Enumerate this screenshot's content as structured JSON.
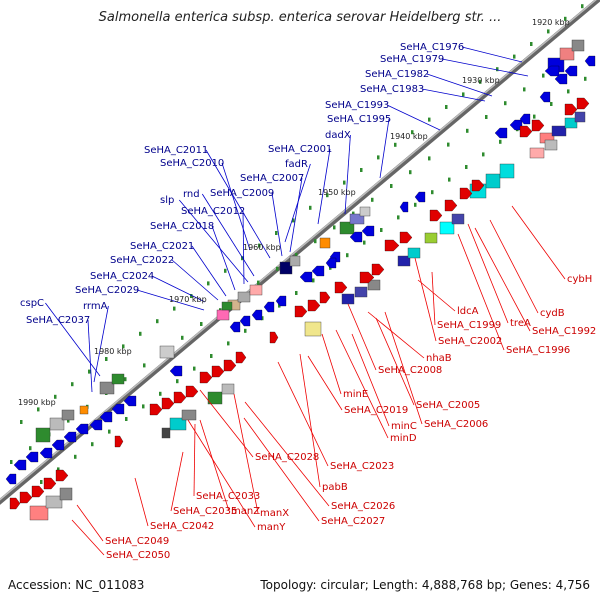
{
  "title": "Salmonella enterica subsp. enterica serovar Heidelberg str. ...",
  "footer": {
    "accession": "Accession: NC_011083",
    "summary": "Topology: circular; Length: 4,888,768 bp; Genes: 4,756"
  },
  "colors": {
    "forward_cds": "#e00000",
    "reverse_cds": "#0000dd",
    "forward_label": "#cc0000",
    "reverse_label": "#00008b",
    "backbone": "#777777",
    "tick": "#2e8b2e"
  },
  "kbp_ticks": [
    "1920 kbp",
    "1930 kbp",
    "1940 kbp",
    "1950 kbp",
    "1960 kbp",
    "1970 kbp",
    "1980 kbp",
    "1990 kbp"
  ],
  "reverse_strand_labels": [
    "SeHA_C1976",
    "SeHA_C1979",
    "SeHA_C1982",
    "SeHA_C1983",
    "SeHA_C1993",
    "SeHA_C1995",
    "dadX",
    "SeHA_C2001",
    "fadR",
    "SeHA_C2007",
    "SeHA_C2009",
    "SeHA_C2010",
    "SeHA_C2011",
    "rnd",
    "slp",
    "SeHA_C2012",
    "SeHA_C2018",
    "SeHA_C2021",
    "SeHA_C2022",
    "SeHA_C2024",
    "SeHA_C2029",
    "cspC",
    "rrmA",
    "SeHA_C2037"
  ],
  "forward_strand_labels": [
    "cybH",
    "cydB",
    "SeHA_C1992",
    "treA",
    "SeHA_C1996",
    "ldcA",
    "SeHA_C1999",
    "SeHA_C2002",
    "nhaB",
    "SeHA_C2008",
    "SeHA_C2005",
    "SeHA_C2006",
    "minE",
    "SeHA_C2019",
    "minC",
    "minD",
    "SeHA_C2023",
    "SeHA_C2028",
    "pabB",
    "SeHA_C2026",
    "SeHA_C2027",
    "manZ",
    "SeHA_C2033",
    "manY",
    "manX",
    "SeHA_C2035",
    "SeHA_C2042",
    "SeHA_C2049",
    "SeHA_C2050"
  ]
}
